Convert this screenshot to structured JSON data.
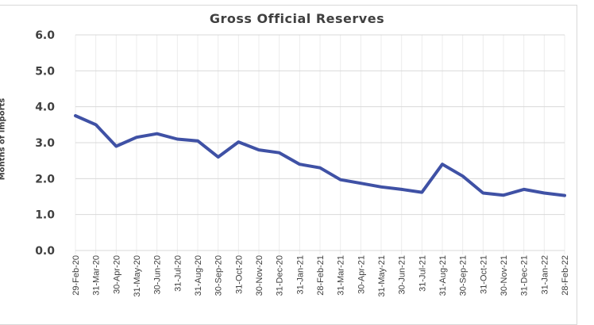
{
  "chart_data": {
    "type": "line",
    "title": "Gross Official Reserves",
    "xlabel": "",
    "ylabel": "Months of imports",
    "ylim": [
      0,
      6
    ],
    "yticks": [
      "0.0",
      "1.0",
      "2.0",
      "3.0",
      "4.0",
      "5.0",
      "6.0"
    ],
    "grid": true,
    "legend": "none",
    "categories": [
      "29-Feb-20",
      "31-Mar-20",
      "30-Apr-20",
      "31-May-20",
      "30-Jun-20",
      "31-Jul-20",
      "31-Aug-20",
      "30-Sep-20",
      "31-Oct-20",
      "30-Nov-20",
      "31-Dec-20",
      "31-Jan-21",
      "28-Feb-21",
      "31-Mar-21",
      "30-Apr-21",
      "31-May-21",
      "30-Jun-21",
      "31-Jul-21",
      "31-Aug-21",
      "30-Sep-21",
      "31-Oct-21",
      "30-Nov-21",
      "31-Dec-21",
      "31-Jan-22",
      "28-Feb-22"
    ],
    "series": [
      {
        "name": "Gross Official Reserves",
        "color": "#3f51a5",
        "values": [
          3.75,
          3.5,
          2.9,
          3.15,
          3.25,
          3.1,
          3.05,
          2.6,
          3.02,
          2.8,
          2.72,
          2.4,
          2.3,
          1.97,
          1.87,
          1.77,
          1.7,
          1.62,
          2.4,
          2.07,
          1.6,
          1.54,
          1.7,
          1.6,
          1.53
        ]
      }
    ]
  }
}
